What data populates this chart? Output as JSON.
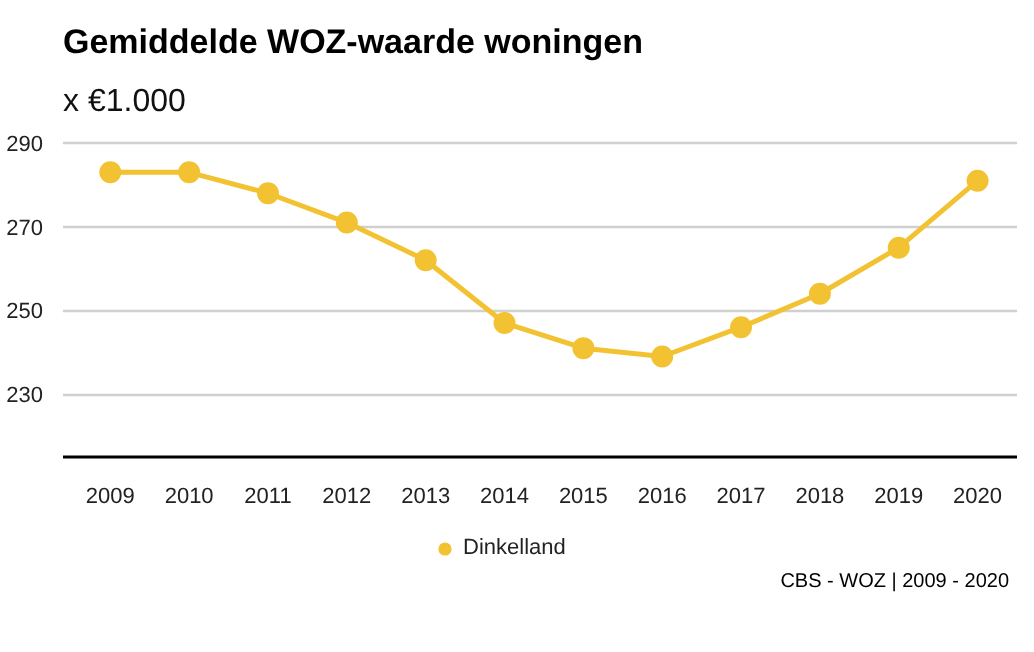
{
  "chart_data": {
    "type": "line",
    "title": "Gemiddelde WOZ-waarde woningen",
    "subtitle": "x €1.000",
    "categories": [
      "2009",
      "2010",
      "2011",
      "2012",
      "2013",
      "2014",
      "2015",
      "2016",
      "2017",
      "2018",
      "2019",
      "2020"
    ],
    "series": [
      {
        "name": "Dinkelland",
        "color": "#f2c232",
        "values": [
          283,
          283,
          278,
          271,
          262,
          247,
          241,
          239,
          246,
          254,
          265,
          281
        ]
      }
    ],
    "ylim": [
      215,
      290
    ],
    "yticks": [
      230,
      250,
      270,
      290
    ],
    "grid": "y",
    "legend": "bottom",
    "marker": "circle",
    "line_style": "solid",
    "annotations": [
      "CBS - WOZ | 2009 - 2020"
    ]
  }
}
